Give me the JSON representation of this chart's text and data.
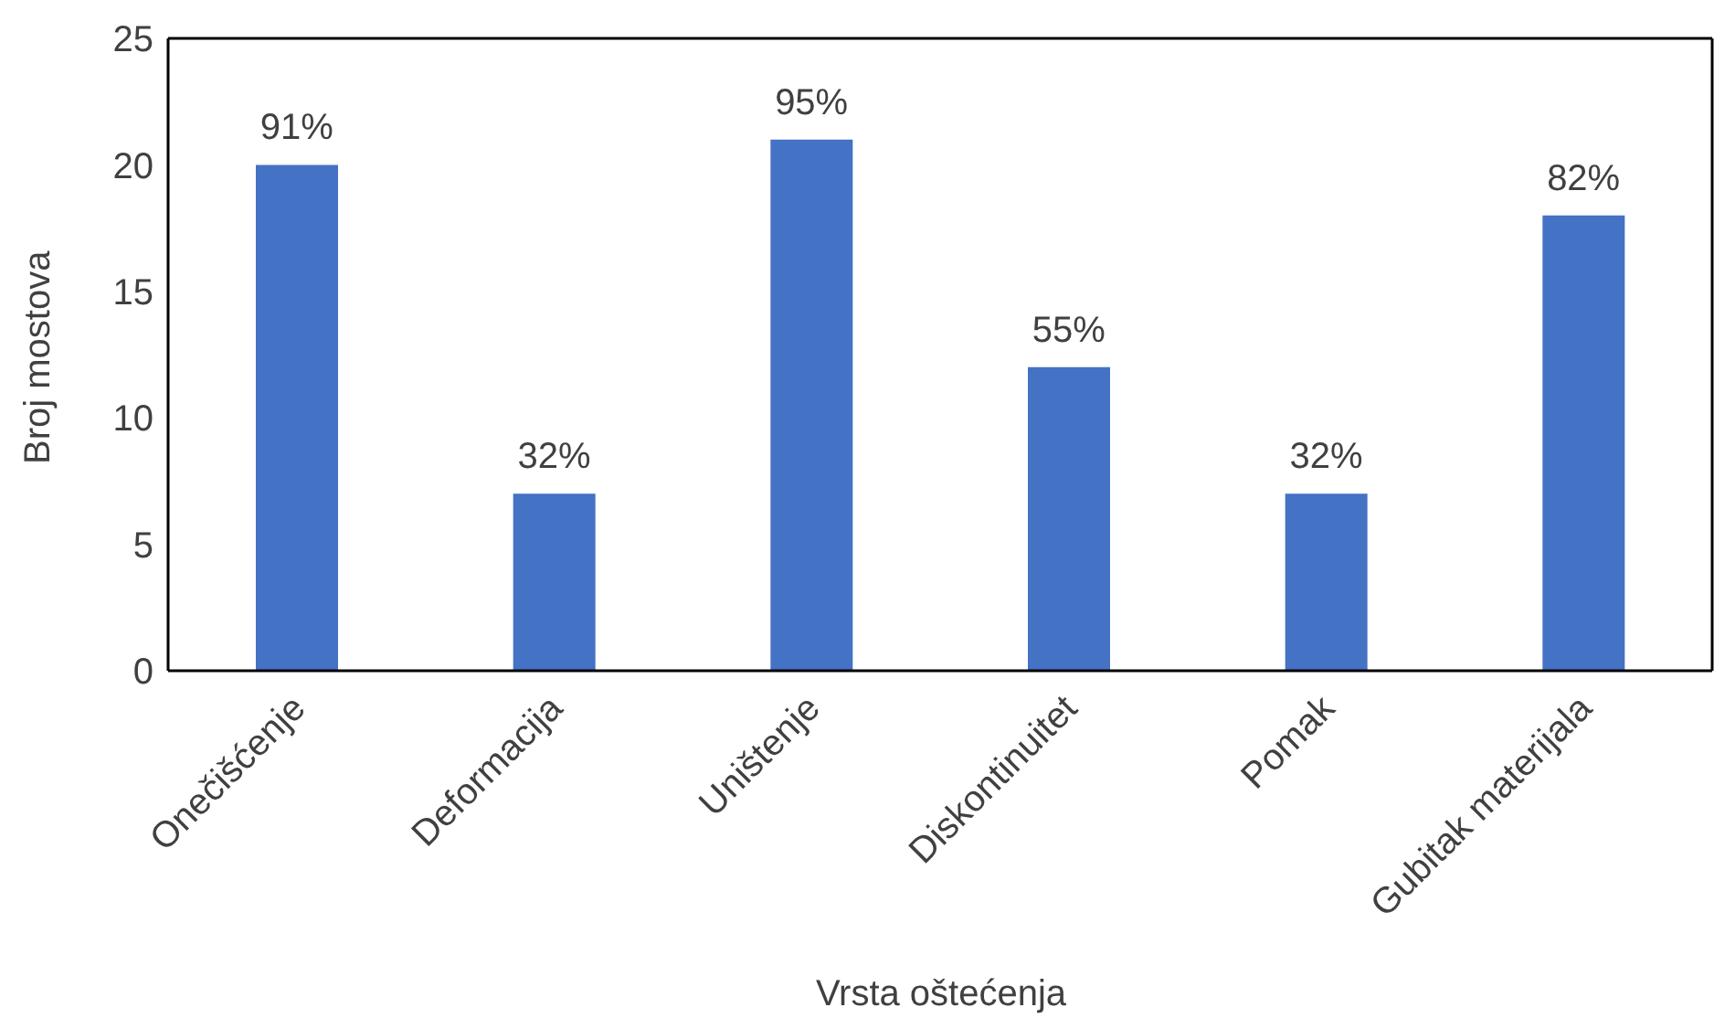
{
  "chart_data": {
    "type": "bar",
    "xlabel": "Vrsta oštećenja",
    "ylabel": "Broj mostova",
    "categories": [
      "Onečišćenje",
      "Deformacija",
      "Uništenje",
      "Diskontinuitet",
      "Pomak",
      "Gubitak materijala"
    ],
    "values": [
      20,
      7,
      21,
      12,
      7,
      18
    ],
    "annotations": [
      {
        "text": "91%",
        "x": "Onečišćenje",
        "y": 20
      },
      {
        "text": "32%",
        "x": "Deformacija",
        "y": 7
      },
      {
        "text": "95%",
        "x": "Uništenje",
        "y": 21
      },
      {
        "text": "55%",
        "x": "Diskontinuitet",
        "y": 12
      },
      {
        "text": "32%",
        "x": "Pomak",
        "y": 7
      },
      {
        "text": "82%",
        "x": "Gubitak materijala",
        "y": 18
      }
    ],
    "color": "#4472c4",
    "ylim": [
      0,
      25
    ],
    "yticks": [
      0,
      5,
      10,
      15,
      20,
      25
    ],
    "grid": false,
    "legend": false
  }
}
